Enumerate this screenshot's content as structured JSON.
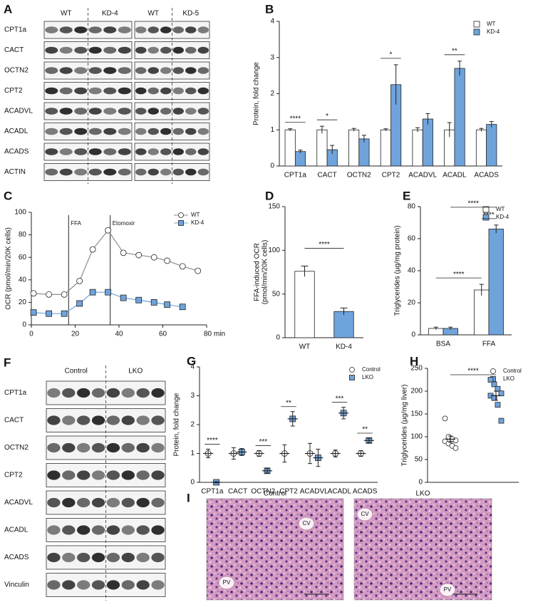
{
  "blots": [
    {
      "panel": "A",
      "groups": [
        "WT",
        "KD-4",
        "WT",
        "KD-5"
      ],
      "rows": [
        "CPT1a",
        "CACT",
        "OCTN2",
        "CPT2",
        "ACADVL",
        "ACADL",
        "ACADS",
        "ACTIN"
      ]
    },
    {
      "panel": "F",
      "groups": [
        "Control",
        "LKO"
      ],
      "rows": [
        "CPT1a",
        "CACT",
        "OCTN2",
        "CPT2",
        "ACADVL",
        "ACADL",
        "ACADS",
        "Vinculin"
      ]
    }
  ],
  "histology": {
    "panel": "I",
    "images": [
      {
        "title": "Control",
        "labels": [
          "CV",
          "PV"
        ]
      },
      {
        "title": "LKO",
        "labels": [
          "CV",
          "PV"
        ]
      }
    ]
  },
  "chart_data": [
    {
      "panel": "B",
      "type": "bar",
      "categories": [
        "CPT1a",
        "CACT",
        "OCTN2",
        "CPT2",
        "ACADVL",
        "ACADL",
        "ACADS"
      ],
      "series": [
        {
          "name": "WT",
          "color": "#ffffff",
          "values": [
            1,
            1,
            1,
            1,
            1,
            1,
            1
          ],
          "errors": [
            0.03,
            0.1,
            0.04,
            0.03,
            0.06,
            0.2,
            0.04
          ]
        },
        {
          "name": "KD-4",
          "color": "#6fa3dc",
          "values": [
            0.4,
            0.45,
            0.75,
            2.25,
            1.3,
            2.7,
            1.15
          ],
          "errors": [
            0.04,
            0.12,
            0.1,
            0.55,
            0.15,
            0.2,
            0.08
          ]
        }
      ],
      "ylim": [
        0,
        4
      ],
      "yticks": [
        0,
        1,
        2,
        3,
        4
      ],
      "ylabel": "Protein, fold change",
      "significance": [
        "****",
        "*",
        null,
        "*",
        null,
        "**",
        null
      ],
      "legend": "upper right"
    },
    {
      "panel": "C",
      "type": "line",
      "x": [
        1,
        8,
        15,
        22,
        28,
        35,
        42,
        49,
        56,
        62,
        69,
        76
      ],
      "series": [
        {
          "name": "WT",
          "color": "#ffffff",
          "line_color": "#8c8c8c",
          "marker": "circle",
          "values": [
            28,
            27,
            27,
            39,
            67,
            84,
            64,
            62,
            60,
            57,
            52,
            48
          ]
        },
        {
          "name": "KD-4",
          "color": "#6fa3dc",
          "line_color": "#6fa3dc",
          "marker": "square",
          "values": [
            11,
            10,
            10,
            19,
            29,
            29,
            24,
            22,
            20,
            18,
            16,
            null
          ]
        }
      ],
      "xlim": [
        0,
        80
      ],
      "xticks": [
        0,
        20,
        40,
        60,
        {
          "value": 80,
          "label": "80 min"
        }
      ],
      "ylim": [
        0,
        100
      ],
      "yticks": [
        0,
        20,
        40,
        60,
        80,
        100
      ],
      "ylabel": "OCR (pmol/min/20K cells)",
      "annotations": [
        {
          "text": "FFA",
          "x": 17
        },
        {
          "text": "Etomoxir",
          "x": 36
        }
      ],
      "legend": "upper right"
    },
    {
      "panel": "D",
      "type": "bar",
      "categories": [
        "WT",
        "KD-4"
      ],
      "values": [
        76,
        30
      ],
      "errors": [
        6,
        4
      ],
      "colors": [
        "#ffffff",
        "#6fa3dc"
      ],
      "ylim": [
        0,
        150
      ],
      "yticks": [
        0,
        50,
        100,
        150
      ],
      "ylabel": [
        "FFA-induced OCR",
        "(pmol/min/20K cells)"
      ],
      "significance": "****"
    },
    {
      "panel": "E",
      "type": "bar",
      "categories": [
        "BSA",
        "FFA"
      ],
      "series": [
        {
          "name": "WT",
          "color": "#ffffff",
          "values": [
            4,
            28
          ],
          "errors": [
            0.8,
            3.5
          ]
        },
        {
          "name": "KD-4",
          "color": "#6fa3dc",
          "values": [
            4,
            66
          ],
          "errors": [
            0.8,
            2.5
          ]
        }
      ],
      "ylim": [
        0,
        80
      ],
      "yticks": [
        0,
        20,
        40,
        60,
        80
      ],
      "ylabel": "Triglycerides (µg/mg protein)",
      "significance": [
        "****",
        "****",
        "****"
      ],
      "legend": "upper right"
    },
    {
      "panel": "G",
      "type": "dot",
      "categories": [
        "CPT1a",
        "CACT",
        "OCTN2",
        "CPT2",
        "ACADVL",
        "ACADL",
        "ACADS"
      ],
      "series": [
        {
          "name": "Control",
          "color": "#ffffff",
          "marker": "circle",
          "values": [
            1,
            1,
            1,
            1,
            1,
            1,
            1
          ],
          "errors": [
            0.15,
            0.2,
            0.1,
            0.3,
            0.35,
            0.12,
            0.1
          ]
        },
        {
          "name": "LKO",
          "color": "#6fa3dc",
          "marker": "square",
          "values": [
            0,
            1.05,
            0.4,
            2.2,
            0.85,
            2.4,
            1.45
          ],
          "errors": [
            0.02,
            0.12,
            0.08,
            0.25,
            0.3,
            0.2,
            0.08
          ]
        }
      ],
      "ylim": [
        0,
        4
      ],
      "yticks": [
        0,
        1,
        2,
        3,
        4
      ],
      "ylabel": "Protein, fold change",
      "significance": [
        "****",
        null,
        "***",
        "**",
        null,
        "***",
        "**"
      ],
      "legend": "upper right"
    },
    {
      "panel": "H",
      "type": "dot",
      "series": [
        {
          "name": "Control",
          "color": "#ffffff",
          "marker": "circle",
          "values": [
            94.6
          ],
          "errors": [
            7
          ],
          "points": [
            140,
            100,
            95,
            92,
            90,
            85,
            80,
            75
          ]
        },
        {
          "name": "LKO",
          "color": "#6fa3dc",
          "marker": "square",
          "values": [
            190
          ],
          "errors": [
            10
          ],
          "points": [
            225,
            215,
            205,
            195,
            190,
            185,
            170,
            135
          ]
        }
      ],
      "ylim": [
        0,
        250
      ],
      "yticks": [
        0,
        50,
        100,
        150,
        200,
        250
      ],
      "ylabel": "Triglycerides (µg/mg liver)",
      "significance": "****",
      "legend": "upper right"
    }
  ]
}
